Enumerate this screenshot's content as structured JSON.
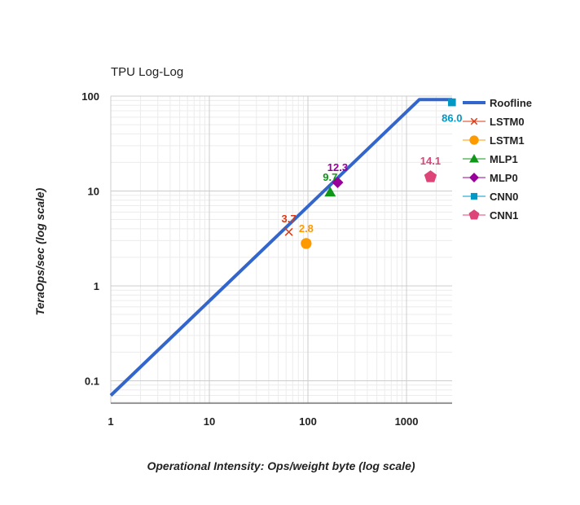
{
  "chart_data": {
    "type": "scatter",
    "title": "TPU Log-Log",
    "xlabel": "Operational Intensity: Ops/weight byte (log scale)",
    "ylabel": "TeraOps/sec (log scale)",
    "xscale": "log",
    "yscale": "log",
    "xlim": [
      1,
      2900
    ],
    "ylim": [
      0.058,
      100
    ],
    "x_ticks": [
      {
        "value": 1,
        "label": "1"
      },
      {
        "value": 10,
        "label": "10"
      },
      {
        "value": 100,
        "label": "100"
      },
      {
        "value": 1000,
        "label": "1000"
      }
    ],
    "y_ticks": [
      {
        "value": 0.1,
        "label": "0.1"
      },
      {
        "value": 1,
        "label": "1"
      },
      {
        "value": 10,
        "label": "10"
      },
      {
        "value": 100,
        "label": "100"
      }
    ],
    "grid": true,
    "legend_position": "right",
    "roofline": {
      "name": "Roofline",
      "color": "#3366cc",
      "points": [
        [
          1,
          0.07
        ],
        [
          1350,
          92
        ],
        [
          2900,
          92
        ]
      ]
    },
    "series": [
      {
        "name": "LSTM0",
        "marker": "x",
        "color": "#dc3912",
        "x": 64,
        "y": 3.7,
        "label": "3.7"
      },
      {
        "name": "LSTM1",
        "marker": "circle",
        "color": "#ff9900",
        "x": 96,
        "y": 2.8,
        "label": "2.8"
      },
      {
        "name": "MLP1",
        "marker": "triangle",
        "color": "#109618",
        "x": 168,
        "y": 9.7,
        "label": "9.7"
      },
      {
        "name": "MLP0",
        "marker": "diamond",
        "color": "#990099",
        "x": 200,
        "y": 12.3,
        "label": "12.3"
      },
      {
        "name": "CNN0",
        "marker": "square",
        "color": "#0099c6",
        "x": 2888,
        "y": 86.0,
        "label": "86.0"
      },
      {
        "name": "CNN1",
        "marker": "pentagon",
        "color": "#dd4477",
        "x": 1750,
        "y": 14.1,
        "label": "14.1"
      }
    ]
  }
}
